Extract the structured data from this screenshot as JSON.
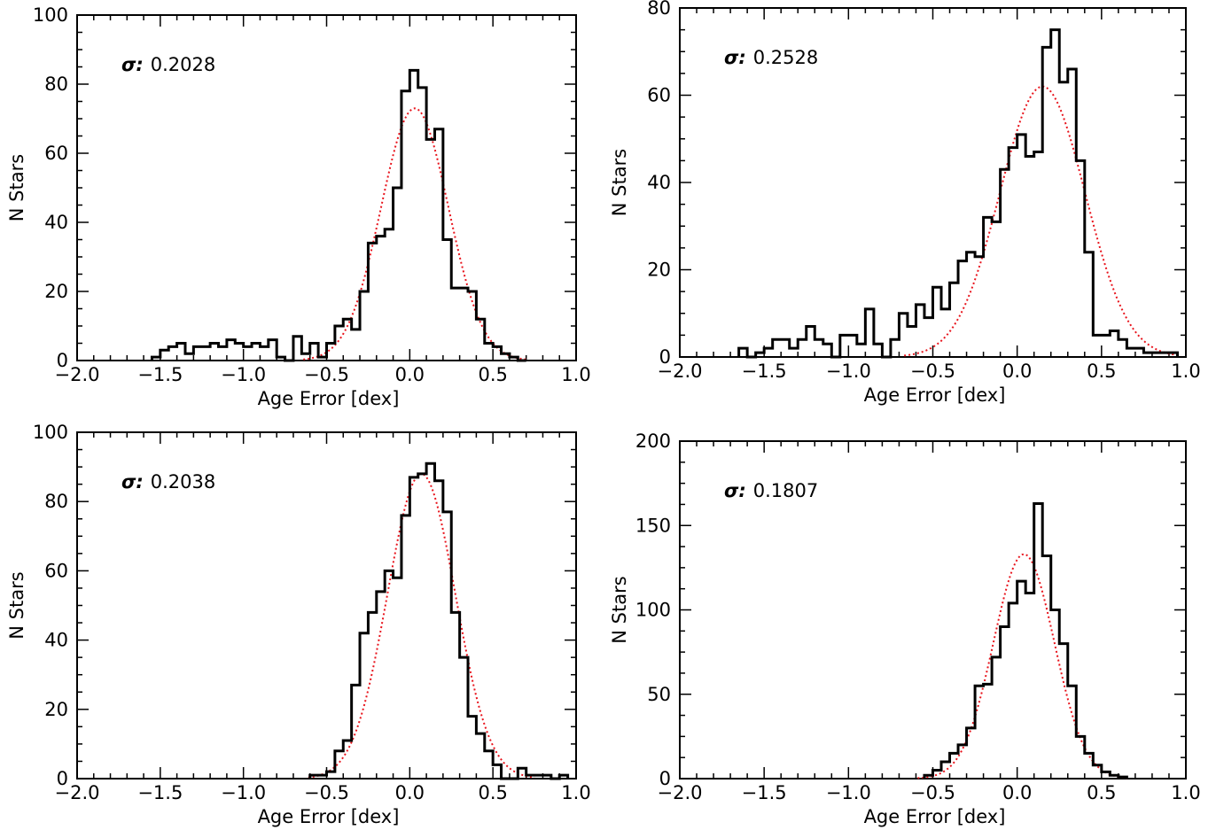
{
  "chart_data": [
    {
      "type": "histogram",
      "panel": "top-left",
      "annotation": {
        "symbol": "σ:",
        "value": "0.2028"
      },
      "xlabel": "Age Error [dex]",
      "ylabel": "N Stars",
      "xlim": [
        -2.0,
        1.0
      ],
      "ylim": [
        0,
        100
      ],
      "xticks": [
        "−2.0",
        "−1.5",
        "−1.0",
        "−0.5",
        "0.0",
        "0.5",
        "1.0"
      ],
      "yticks": [
        "0",
        "20",
        "40",
        "60",
        "80",
        "100"
      ],
      "bin_width": 0.05,
      "hist_x": [
        -1.55,
        -1.5,
        -1.45,
        -1.4,
        -1.35,
        -1.3,
        -1.25,
        -1.2,
        -1.15,
        -1.1,
        -1.05,
        -1.0,
        -0.95,
        -0.9,
        -0.85,
        -0.8,
        -0.75,
        -0.7,
        -0.65,
        -0.6,
        -0.55,
        -0.5,
        -0.45,
        -0.4,
        -0.35,
        -0.3,
        -0.25,
        -0.2,
        -0.15,
        -0.1,
        -0.05,
        0.0,
        0.05,
        0.1,
        0.15,
        0.2,
        0.25,
        0.3,
        0.35,
        0.4,
        0.45,
        0.5,
        0.55,
        0.6,
        0.65
      ],
      "hist_y": [
        1,
        3,
        4,
        5,
        2,
        4,
        4,
        5,
        4,
        6,
        5,
        4,
        5,
        4,
        6,
        1,
        0,
        7,
        2,
        5,
        1,
        5,
        10,
        12,
        9,
        20,
        34,
        36,
        38,
        50,
        78,
        84,
        79,
        64,
        67,
        35,
        21,
        21,
        20,
        12,
        5,
        4,
        2,
        1,
        0
      ],
      "gaussian": {
        "amplitude": 73,
        "mean": 0.03,
        "sigma": 0.2028
      }
    },
    {
      "type": "histogram",
      "panel": "top-right",
      "annotation": {
        "symbol": "σ:",
        "value": "0.2528"
      },
      "xlabel": "Age Error [dex]",
      "ylabel": "N Stars",
      "xlim": [
        -2.0,
        1.0
      ],
      "ylim": [
        0,
        80
      ],
      "xticks": [
        "−2.0",
        "−1.5",
        "−1.0",
        "−0.5",
        "0.0",
        "0.5",
        "1.0"
      ],
      "yticks": [
        "0",
        "20",
        "40",
        "60",
        "80"
      ],
      "bin_width": 0.05,
      "hist_x": [
        -1.65,
        -1.6,
        -1.55,
        -1.5,
        -1.45,
        -1.4,
        -1.35,
        -1.3,
        -1.25,
        -1.2,
        -1.15,
        -1.1,
        -1.05,
        -1.0,
        -0.95,
        -0.9,
        -0.85,
        -0.8,
        -0.75,
        -0.7,
        -0.65,
        -0.6,
        -0.55,
        -0.5,
        -0.45,
        -0.4,
        -0.35,
        -0.3,
        -0.25,
        -0.2,
        -0.15,
        -0.1,
        -0.05,
        0.0,
        0.05,
        0.1,
        0.15,
        0.2,
        0.25,
        0.3,
        0.35,
        0.4,
        0.45,
        0.5,
        0.55,
        0.6,
        0.65,
        0.7,
        0.75,
        0.8,
        0.85,
        0.9
      ],
      "hist_y": [
        2,
        0,
        1,
        2,
        4,
        4,
        2,
        4,
        7,
        4,
        3,
        0,
        5,
        5,
        3,
        11,
        3,
        0,
        4,
        10,
        7,
        12,
        9,
        16,
        11,
        17,
        22,
        24,
        23,
        32,
        31,
        43,
        48,
        51,
        46,
        47,
        71,
        75,
        63,
        66,
        45,
        24,
        5,
        5,
        6,
        4,
        2,
        2,
        1,
        1,
        1,
        1
      ],
      "gaussian": {
        "amplitude": 62,
        "mean": 0.15,
        "sigma": 0.2528
      }
    },
    {
      "type": "histogram",
      "panel": "bottom-left",
      "annotation": {
        "symbol": "σ:",
        "value": "0.2038"
      },
      "xlabel": "Age Error [dex]",
      "ylabel": "N Stars",
      "xlim": [
        -2.0,
        1.0
      ],
      "ylim": [
        0,
        100
      ],
      "xticks": [
        "−2.0",
        "−1.5",
        "−1.0",
        "−0.5",
        "0.0",
        "0.5",
        "1.0"
      ],
      "yticks": [
        "0",
        "20",
        "40",
        "60",
        "80",
        "100"
      ],
      "bin_width": 0.05,
      "hist_x": [
        -0.6,
        -0.55,
        -0.5,
        -0.45,
        -0.4,
        -0.35,
        -0.3,
        -0.25,
        -0.2,
        -0.15,
        -0.1,
        -0.05,
        0.0,
        0.05,
        0.1,
        0.15,
        0.2,
        0.25,
        0.3,
        0.35,
        0.4,
        0.45,
        0.5,
        0.55,
        0.6,
        0.65,
        0.7,
        0.75,
        0.8,
        0.85,
        0.9
      ],
      "hist_y": [
        1,
        1,
        2,
        8,
        11,
        27,
        42,
        48,
        54,
        60,
        58,
        76,
        87,
        88,
        91,
        86,
        77,
        48,
        35,
        18,
        13,
        8,
        4,
        0,
        0,
        3,
        1,
        1,
        1,
        0,
        1
      ],
      "gaussian": {
        "amplitude": 88,
        "mean": 0.07,
        "sigma": 0.2038
      }
    },
    {
      "type": "histogram",
      "panel": "bottom-right",
      "annotation": {
        "symbol": "σ:",
        "value": "0.1807"
      },
      "xlabel": "Age Error [dex]",
      "ylabel": "N Stars",
      "xlim": [
        -2.0,
        1.0
      ],
      "ylim": [
        0,
        200
      ],
      "xticks": [
        "−2.0",
        "−1.5",
        "−1.0",
        "−0.5",
        "0.0",
        "0.5",
        "1.0"
      ],
      "yticks": [
        "0",
        "50",
        "100",
        "150",
        "200"
      ],
      "bin_width": 0.05,
      "hist_x": [
        -0.55,
        -0.5,
        -0.45,
        -0.4,
        -0.35,
        -0.3,
        -0.25,
        -0.2,
        -0.15,
        -0.1,
        -0.05,
        0.0,
        0.05,
        0.1,
        0.15,
        0.2,
        0.25,
        0.3,
        0.35,
        0.4,
        0.45,
        0.5,
        0.55,
        0.6
      ],
      "hist_y": [
        2,
        5,
        10,
        15,
        20,
        30,
        55,
        56,
        72,
        90,
        104,
        117,
        110,
        163,
        132,
        100,
        80,
        55,
        25,
        15,
        8,
        4,
        2,
        1
      ],
      "gaussian": {
        "amplitude": 133,
        "mean": 0.04,
        "sigma": 0.1807
      }
    }
  ],
  "colors": {
    "histogram": "#000000",
    "fit": "#e8141c",
    "axes": "#000000"
  }
}
